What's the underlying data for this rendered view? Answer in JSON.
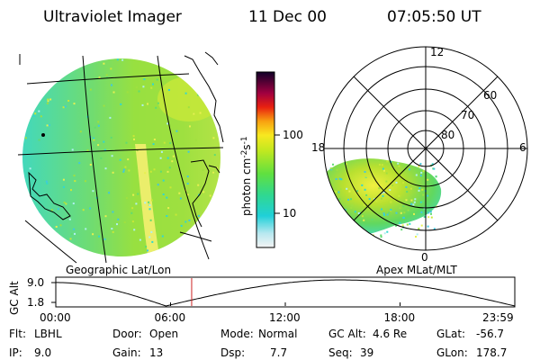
{
  "header": {
    "instrument": "Ultraviolet Imager",
    "date": "11 Dec 00",
    "time": "07:05:50 UT"
  },
  "geo_panel": {
    "label": "Geographic Lat/Lon"
  },
  "colorbar": {
    "unit_prefix": "photon cm",
    "exp1": "-2",
    "unit_mid": "s",
    "exp2": "-1",
    "tick_100": "100",
    "tick_10": "10"
  },
  "polar_panel": {
    "label": "Apex MLat/MLT",
    "mlt_12": "12",
    "mlt_18": "18",
    "mlt_6": "6",
    "mlt_0": "0",
    "lat_60": "60",
    "lat_70": "70",
    "lat_80": "80"
  },
  "altitude_plot": {
    "ylabel": "GC Alt",
    "ytick_top": "9.0",
    "ytick_bottom": "1.8",
    "xticks": [
      "00:00",
      "06:00",
      "12:00",
      "18:00",
      "23:59"
    ],
    "current_time_fraction": 0.296
  },
  "info": {
    "flt_label": "Flt:",
    "flt_value": "LBHL",
    "ip_label": "IP:",
    "ip_value": "9.0",
    "door_label": "Door:",
    "door_value": "Open",
    "gain_label": "Gain:",
    "gain_value": "13",
    "mode_label": "Mode:",
    "mode_value": "Normal",
    "dsp_label": "Dsp:",
    "dsp_value": "7.7",
    "gcalt_label": "GC Alt:",
    "gcalt_value": "4.6 Re",
    "seq_label": "Seq:",
    "seq_value": "39",
    "glat_label": "GLat:",
    "glat_value": "-56.7",
    "glon_label": "GLon:",
    "glon_value": "178.7"
  },
  "colors": {
    "background": "#ffffff",
    "orbit_line": "#000000",
    "current_time_marker": "#cc2222",
    "emission_low": "#00d8e0",
    "emission_mid": "#8ee000",
    "emission_high": "#ffff40"
  }
}
